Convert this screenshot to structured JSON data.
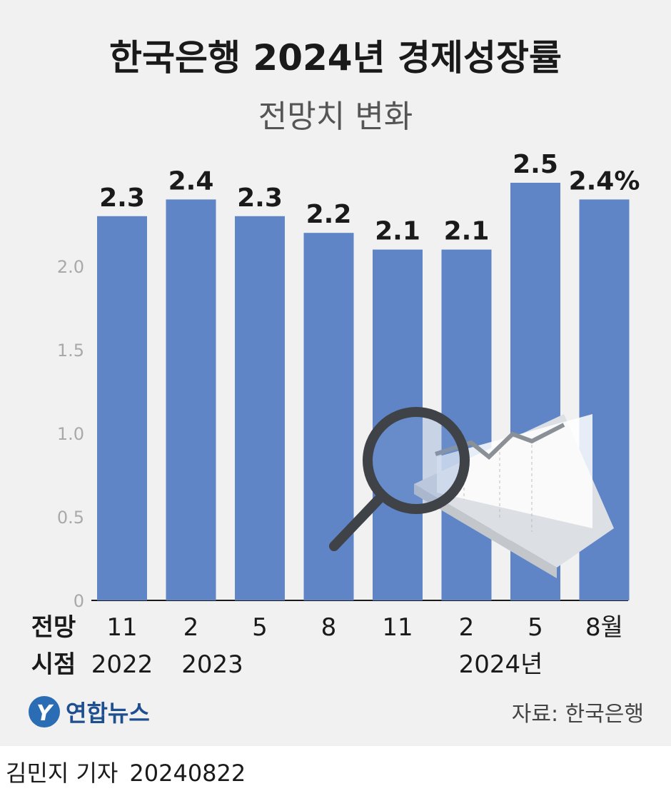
{
  "chart_data": {
    "type": "bar",
    "title": "한국은행 2024년 경제성장률",
    "subtitle": "전망치 변화",
    "categories": [
      "11",
      "2",
      "5",
      "8",
      "11",
      "2",
      "5",
      "8월"
    ],
    "year_labels": [
      {
        "text": "2022",
        "index": 0
      },
      {
        "text": "2023",
        "index": 1
      },
      {
        "text": "2024년",
        "index": 5
      }
    ],
    "values": [
      2.3,
      2.4,
      2.3,
      2.2,
      2.1,
      2.1,
      2.5,
      2.4
    ],
    "value_labels": [
      "2.3",
      "2.4",
      "2.3",
      "2.2",
      "2.1",
      "2.1",
      "2.5",
      "2.4%"
    ],
    "ylim": [
      0,
      2.5
    ],
    "yticks": [
      0,
      0.5,
      1.0,
      1.5,
      2.0
    ],
    "ytick_labels": [
      "0",
      "0.5",
      "1.0",
      "1.5",
      "2.0"
    ],
    "x_header": [
      "전망",
      "시점"
    ],
    "grid": false,
    "bar_color": "#5f85c6"
  },
  "brand": {
    "name": "연합뉴스",
    "logo_letter": "Y"
  },
  "source": "자료: 한국은행",
  "byline": {
    "author": "김민지 기자",
    "date": "20240822"
  }
}
